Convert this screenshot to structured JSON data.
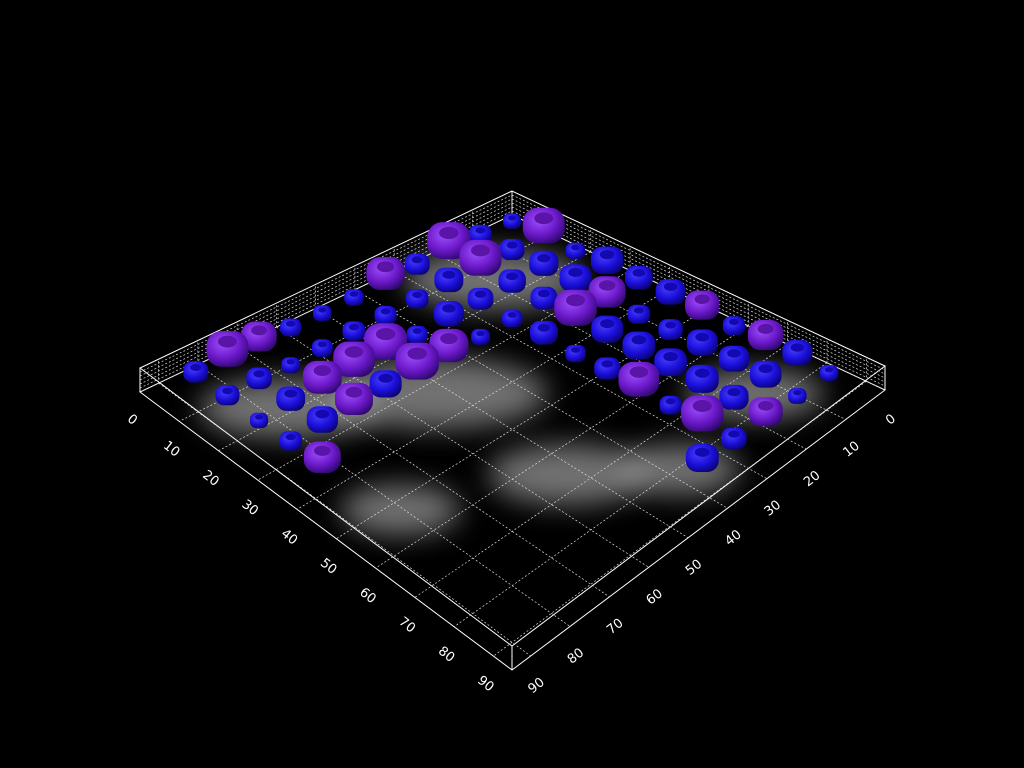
{
  "left_axis": {
    "ticks": [
      "0",
      "10",
      "20",
      "30",
      "40",
      "50",
      "60",
      "70",
      "80",
      "90"
    ]
  },
  "right_axis": {
    "ticks": [
      "0",
      "10",
      "20",
      "30",
      "40",
      "50",
      "60",
      "70",
      "80",
      "90"
    ]
  }
}
